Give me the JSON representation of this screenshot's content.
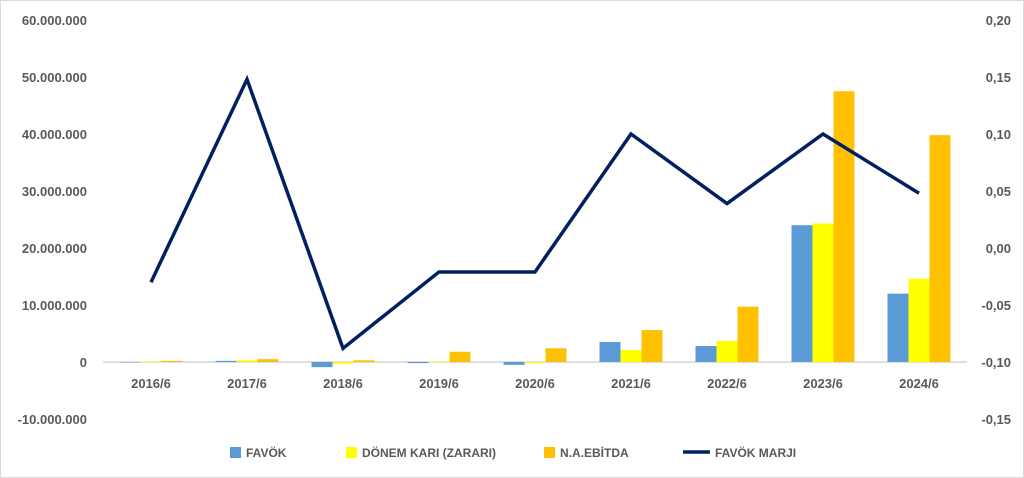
{
  "chart_data": {
    "type": "bar",
    "categories": [
      "2016/6",
      "2017/6",
      "2018/6",
      "2019/6",
      "2020/6",
      "2021/6",
      "2022/6",
      "2023/6",
      "2024/6"
    ],
    "series": [
      {
        "name": "FAVÖK",
        "type": "bar",
        "axis": "left",
        "color": "#5b9bd5",
        "values": [
          0,
          200000,
          -900000,
          -200000,
          -500000,
          3500000,
          2800000,
          24000000,
          12000000
        ]
      },
      {
        "name": "DÖNEM KARI (ZARARI)",
        "type": "bar",
        "axis": "left",
        "color": "#ffff00",
        "values": [
          100000,
          300000,
          -300000,
          100000,
          -200000,
          2100000,
          3700000,
          24300000,
          14600000
        ]
      },
      {
        "name": "N.A.EBİTDA",
        "type": "bar",
        "axis": "left",
        "color": "#ffc000",
        "values": [
          200000,
          500000,
          300000,
          1800000,
          2400000,
          5600000,
          9700000,
          47500000,
          39800000
        ]
      },
      {
        "name": "FAVÖK MARJI",
        "type": "line",
        "axis": "right",
        "color": "#002060",
        "values": [
          -0.03,
          0.148,
          -0.088,
          -0.021,
          -0.021,
          0.1,
          0.039,
          0.1,
          0.048
        ]
      }
    ],
    "y_left": {
      "ylim": [
        -10000000,
        60000000
      ],
      "ticks": [
        60000000,
        50000000,
        40000000,
        30000000,
        20000000,
        10000000,
        0,
        -10000000
      ],
      "tick_labels": [
        "60.000.000",
        "50.000.000",
        "40.000.000",
        "30.000.000",
        "20.000.000",
        "10.000.000",
        "0",
        "-10.000.000"
      ]
    },
    "y_right": {
      "ylim": [
        -0.15,
        0.2
      ],
      "ticks": [
        0.2,
        0.15,
        0.1,
        0.05,
        0.0,
        -0.05,
        -0.1,
        -0.15
      ],
      "tick_labels": [
        "0,20",
        "0,15",
        "0,10",
        "0,05",
        "0,00",
        "-0,05",
        "-0,10",
        "-0,15"
      ]
    },
    "grid": false,
    "legend": "bottom",
    "title": "",
    "xlabel": "",
    "ylabel": ""
  }
}
